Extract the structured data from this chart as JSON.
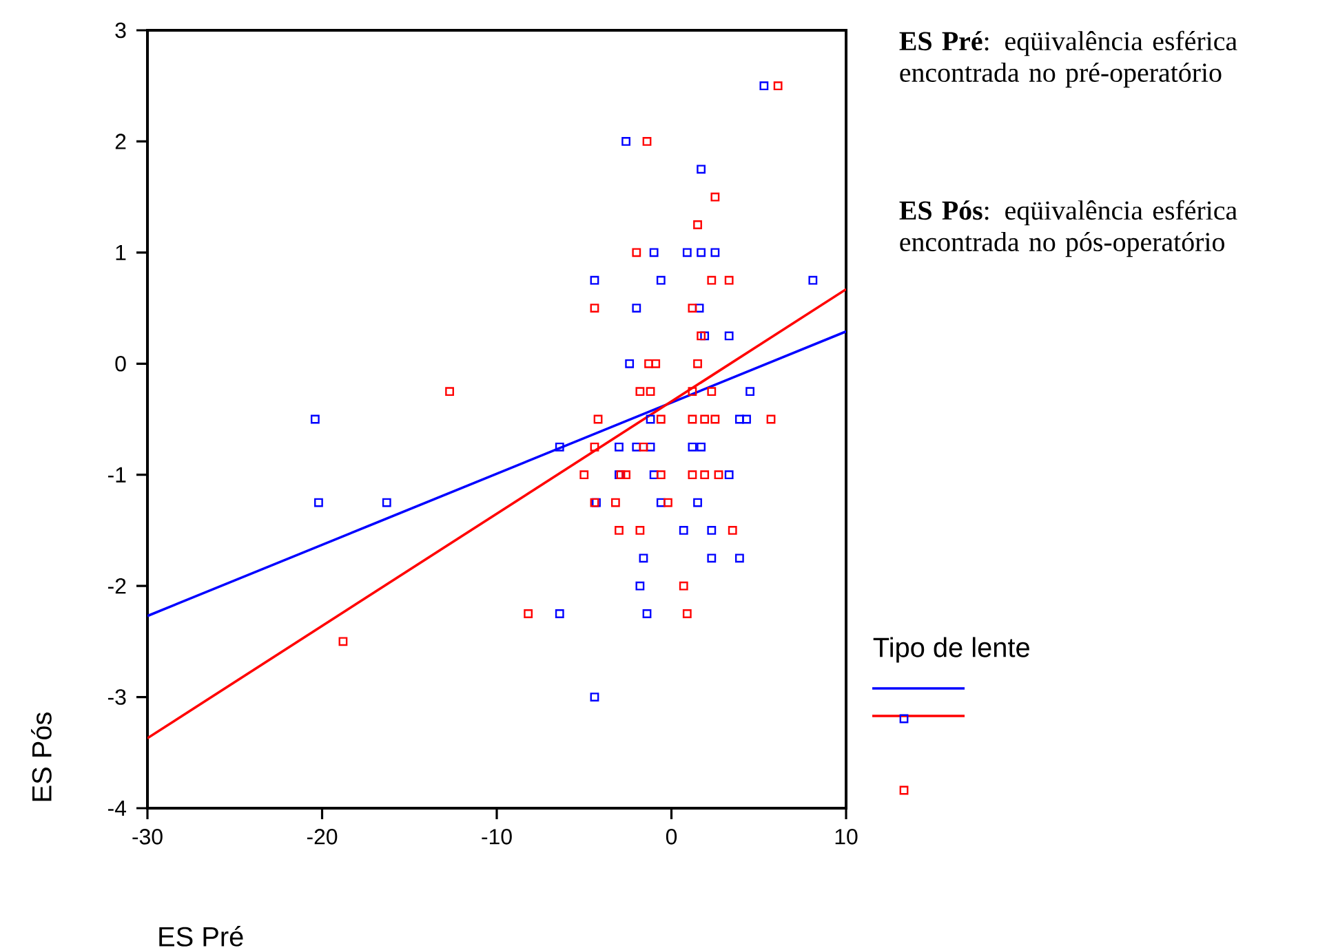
{
  "chart_data": {
    "type": "scatter",
    "xlabel": "ES Pré",
    "ylabel": "ES Pós",
    "legend_title": "Tipo de lente",
    "annotations": [
      "**ES Pré**: eqüivalência esférica encontrada no pré-operatório",
      "**ES Pós**: eqüivalência esférica encontrada no pós-operatório"
    ],
    "xlim": [
      -30,
      10
    ],
    "xticks": [
      -30,
      -20,
      -10,
      0,
      10
    ],
    "ylim": [
      -4,
      3
    ],
    "yticks": [
      -4,
      -3,
      -2,
      -1,
      0,
      1,
      2,
      3
    ],
    "grid": false,
    "marker": "square",
    "series": [
      {
        "color": "#0000ff",
        "x": [
          5.3,
          -2.6,
          1.7,
          -1.0,
          0.9,
          1.7,
          2.5,
          -4.4,
          -0.6,
          8.1,
          -2.0,
          1.6,
          1.9,
          3.3,
          -2.4,
          4.5,
          -1.2,
          3.9,
          4.3,
          -6.4,
          -3.0,
          -2.0,
          -1.2,
          1.2,
          1.7,
          -3.0,
          -1.0,
          3.3,
          -4.3,
          -0.6,
          1.5,
          0.7,
          2.3,
          -1.6,
          2.3,
          3.9,
          -1.8,
          -6.4,
          -1.4,
          -4.4,
          -20.4,
          -20.2,
          -16.3
        ],
        "values": [
          2.5,
          2,
          1.75,
          1,
          1,
          1,
          1,
          0.75,
          0.75,
          0.75,
          0.5,
          0.5,
          0.25,
          0.25,
          0,
          -0.25,
          -0.5,
          -0.5,
          -0.5,
          -0.75,
          -0.75,
          -0.75,
          -0.75,
          -0.75,
          -0.75,
          -1,
          -1,
          -1,
          -1.25,
          -1.25,
          -1.25,
          -1.5,
          -1.5,
          -1.75,
          -1.75,
          -1.75,
          -2,
          -2.25,
          -2.25,
          -3,
          -0.5,
          -1.25,
          -1.25
        ]
      },
      {
        "color": "#ff0000",
        "x": [
          6.1,
          -1.4,
          2.5,
          1.5,
          -2.0,
          2.3,
          3.3,
          -4.4,
          1.2,
          1.7,
          -1.3,
          -0.9,
          1.5,
          -1.8,
          -1.2,
          1.2,
          2.3,
          -4.2,
          -0.6,
          1.2,
          1.9,
          2.5,
          5.7,
          -4.4,
          -1.6,
          -5.0,
          -2.9,
          -2.6,
          -0.6,
          1.2,
          1.9,
          2.7,
          -4.4,
          -3.2,
          -0.2,
          -3.0,
          -1.8,
          3.5,
          0.7,
          0.9,
          -12.7,
          -8.2,
          -18.8
        ],
        "values": [
          2.5,
          2,
          1.5,
          1.25,
          1,
          0.75,
          0.75,
          0.5,
          0.5,
          0.25,
          0,
          0,
          0,
          -0.25,
          -0.25,
          -0.25,
          -0.25,
          -0.5,
          -0.5,
          -0.5,
          -0.5,
          -0.5,
          -0.5,
          -0.75,
          -0.75,
          -1,
          -1,
          -1,
          -1,
          -1,
          -1,
          -1,
          -1.25,
          -1.25,
          -1.25,
          -1.5,
          -1.5,
          -1.5,
          -2,
          -2.25,
          -0.25,
          -2.25,
          -2.5
        ]
      },
      {
        "type": "line",
        "marker": "none",
        "color": "#0000ff",
        "x": [
          -30,
          10
        ],
        "values": [
          -2.27,
          0.29
        ]
      },
      {
        "type": "line",
        "marker": "none",
        "color": "#ff0000",
        "x": [
          -30,
          10
        ],
        "values": [
          -3.37,
          0.67
        ]
      }
    ]
  }
}
